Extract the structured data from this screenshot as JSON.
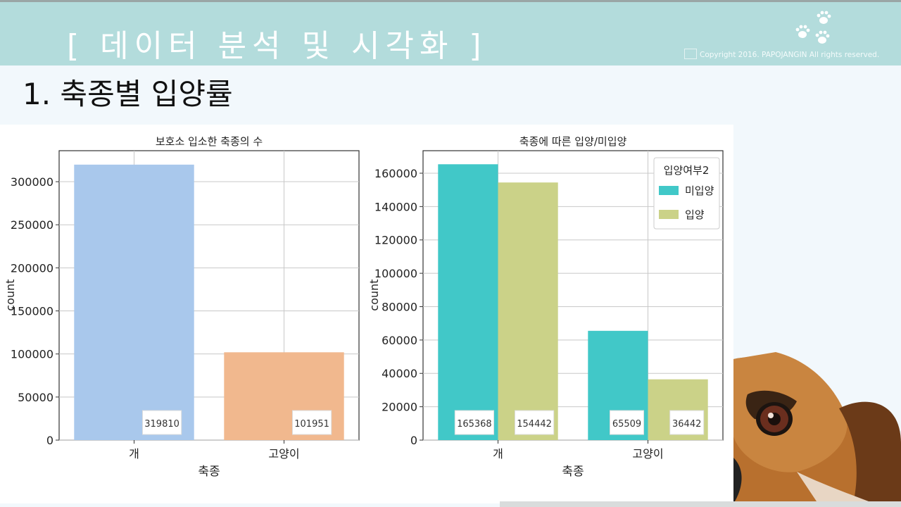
{
  "slide": {
    "title": "[  데이터 분석 및 시각화 ]",
    "copyright": "Copyright 2016. PAPOJANGIN All rights reserved.",
    "section_title": "1. 축종별 입양률"
  },
  "colors": {
    "header_bar": "#b3dcdc",
    "dog_blue": "#a9c8ec",
    "cat_orange": "#f1b88e",
    "not_adopted": "#41c8c8",
    "adopted": "#cbd288"
  },
  "icons": [
    "paw-prints-logo",
    "dog-photo"
  ],
  "chart_data": [
    {
      "type": "bar",
      "title": "보호소 입소한 축종의 수",
      "xlabel": "축종",
      "ylabel": "count",
      "categories": [
        "개",
        "고양이"
      ],
      "values": [
        319810,
        101951
      ],
      "value_labels": [
        "319810",
        "101951"
      ],
      "ylim": [
        0,
        336000
      ],
      "yticks": [
        0,
        50000,
        100000,
        150000,
        200000,
        250000,
        300000
      ],
      "ytick_labels": [
        "0",
        "50000",
        "100000",
        "150000",
        "200000",
        "250000",
        "300000"
      ],
      "grid": true
    },
    {
      "type": "bar",
      "title": "축종에 따른 입양/미입양",
      "xlabel": "축종",
      "ylabel": "count",
      "categories": [
        "개",
        "고양이"
      ],
      "legend_title": "입양여부2",
      "legend_position": "top-right",
      "series": [
        {
          "name": "미입양",
          "values": [
            165368,
            65509
          ],
          "value_labels": [
            "165368",
            "65509"
          ]
        },
        {
          "name": "입양",
          "values": [
            154442,
            36442
          ],
          "value_labels": [
            "154442",
            "36442"
          ]
        }
      ],
      "ylim": [
        0,
        173500
      ],
      "yticks": [
        0,
        20000,
        40000,
        60000,
        80000,
        100000,
        120000,
        140000,
        160000
      ],
      "ytick_labels": [
        "0",
        "20000",
        "40000",
        "60000",
        "80000",
        "100000",
        "120000",
        "140000",
        "160000"
      ],
      "grid": true
    }
  ]
}
